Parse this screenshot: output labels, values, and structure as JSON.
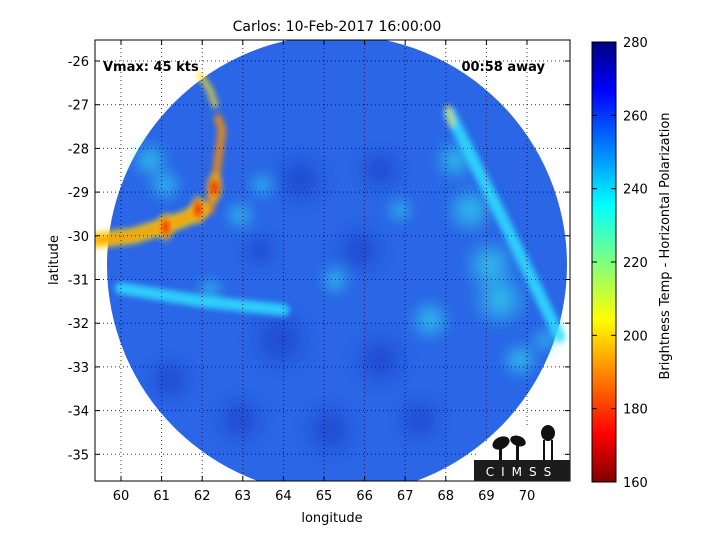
{
  "title": "Carlos: 10-Feb-2017 16:00:00",
  "vmax_label": "Vmax: 45 kts",
  "away_label": "00:58 away",
  "xlabel": "longitude",
  "ylabel": "latitude",
  "x_ticks": [
    "60",
    "61",
    "62",
    "63",
    "64",
    "65",
    "66",
    "67",
    "68",
    "69",
    "70"
  ],
  "y_ticks": [
    "-26",
    "-27",
    "-28",
    "-29",
    "-30",
    "-31",
    "-32",
    "-33",
    "-34",
    "-35"
  ],
  "colorbar": {
    "label": "Brightness Temp - Horizontal Polarization",
    "ticks": [
      "280",
      "260",
      "240",
      "220",
      "200",
      "180",
      "160"
    ],
    "colormap": "jet",
    "range": [
      160,
      280
    ]
  },
  "logo": {
    "text": "CIMSS"
  },
  "map": {
    "xlim": [
      59.4,
      71.0
    ],
    "ylim": [
      -35.5,
      -25.5
    ],
    "swath_center": [
      65.35,
      -30.6
    ],
    "swath_radius_deg": 5.6,
    "background_temp": 258,
    "grid": true
  },
  "features": [
    {
      "name": "cold-band-west",
      "lon": [
        59.4,
        60.3,
        61.0,
        61.6,
        62.0
      ],
      "lat": [
        -30.1,
        -30.0,
        -29.8,
        -29.6,
        -29.4
      ],
      "temp_k": 200
    },
    {
      "name": "cold-cell-62.3",
      "lon": 62.3,
      "lat": -28.9,
      "temp_k": 185
    },
    {
      "name": "cold-cell-61.9",
      "lon": 61.9,
      "lat": -29.4,
      "temp_k": 178
    },
    {
      "name": "cold-cell-61.1",
      "lon": 61.1,
      "lat": -29.8,
      "temp_k": 190
    },
    {
      "name": "warm-band-south",
      "lon": [
        60.0,
        62.0,
        64.0
      ],
      "lat": [
        -31.2,
        -31.5,
        -31.7
      ],
      "temp_k": 235
    },
    {
      "name": "east-streak",
      "lon": [
        68.1,
        69.5,
        70.8
      ],
      "lat": [
        -27.2,
        -29.8,
        -32.3
      ],
      "temp_k": 232
    }
  ]
}
